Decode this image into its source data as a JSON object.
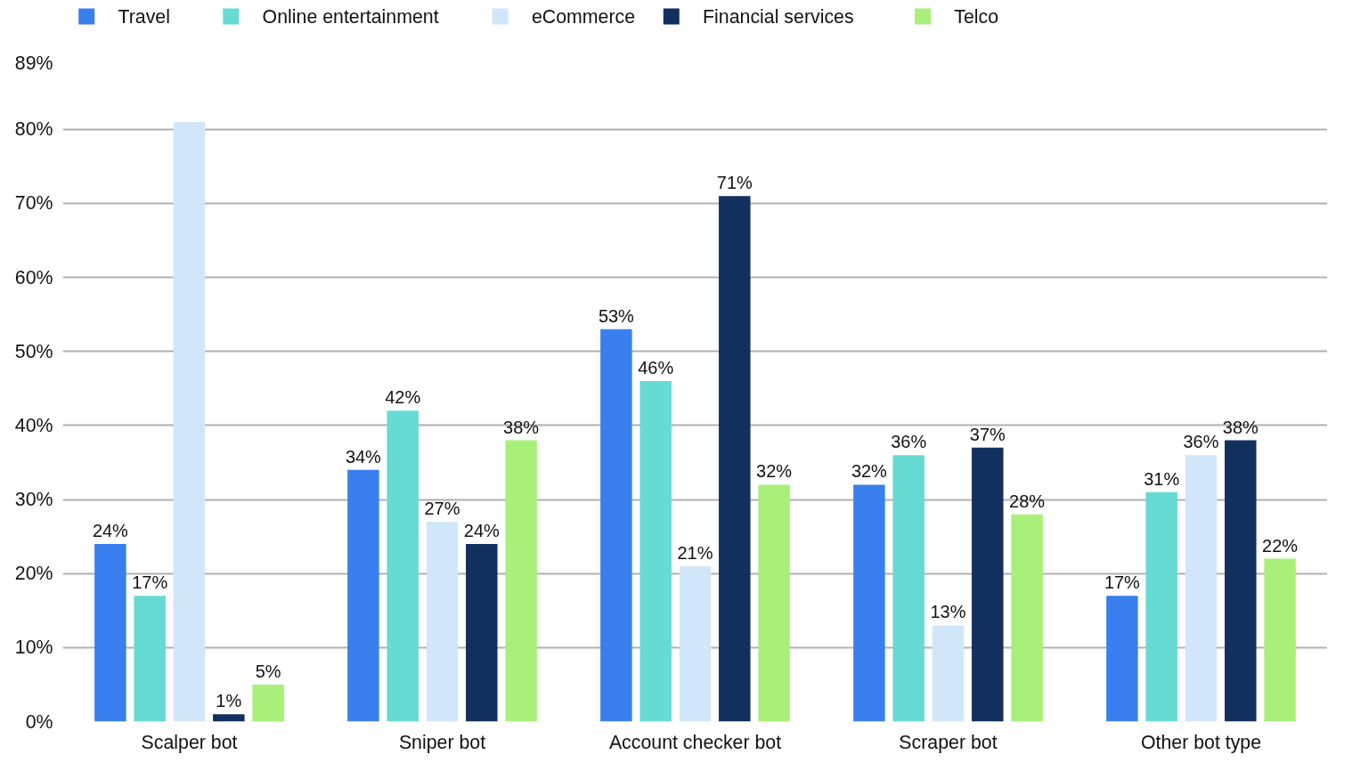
{
  "chart_data": {
    "type": "bar",
    "categories": [
      "Scalper bot",
      "Sniper bot",
      "Account checker bot",
      "Scraper bot",
      "Other bot type"
    ],
    "series": [
      {
        "name": "Travel",
        "color": "#3a7ff0",
        "values": [
          24,
          34,
          53,
          32,
          17
        ],
        "value_labels": [
          "24%",
          "34%",
          "53%",
          "32%",
          "17%"
        ]
      },
      {
        "name": "Online entertainment",
        "color": "#66dbd4",
        "values": [
          17,
          42,
          46,
          36,
          31
        ],
        "value_labels": [
          "17%",
          "42%",
          "46%",
          "36%",
          "31%"
        ]
      },
      {
        "name": "eCommerce",
        "color": "#d2e6fa",
        "values": [
          81,
          27,
          21,
          13,
          36
        ],
        "value_labels": [
          null,
          "27%",
          "21%",
          "13%",
          "36%"
        ]
      },
      {
        "name": "Financial services",
        "color": "#12305e",
        "values": [
          1,
          24,
          71,
          37,
          38
        ],
        "value_labels": [
          "1%",
          "24%",
          "71%",
          "37%",
          "38%"
        ]
      },
      {
        "name": "Telco",
        "color": "#a8f07a",
        "values": [
          5,
          38,
          32,
          28,
          22
        ],
        "value_labels": [
          "5%",
          "38%",
          "32%",
          "28%",
          "22%"
        ]
      }
    ],
    "ylim": [
      0,
      89
    ],
    "yticks": [
      {
        "value": 0,
        "label": "0%"
      },
      {
        "value": 10,
        "label": "10%"
      },
      {
        "value": 20,
        "label": "20%"
      },
      {
        "value": 30,
        "label": "30%"
      },
      {
        "value": 40,
        "label": "40%"
      },
      {
        "value": 50,
        "label": "50%"
      },
      {
        "value": 60,
        "label": "60%"
      },
      {
        "value": 70,
        "label": "70%"
      },
      {
        "value": 80,
        "label": "80%"
      },
      {
        "value": 89,
        "label": "89%"
      }
    ],
    "grid": "y",
    "legend": "top left"
  }
}
